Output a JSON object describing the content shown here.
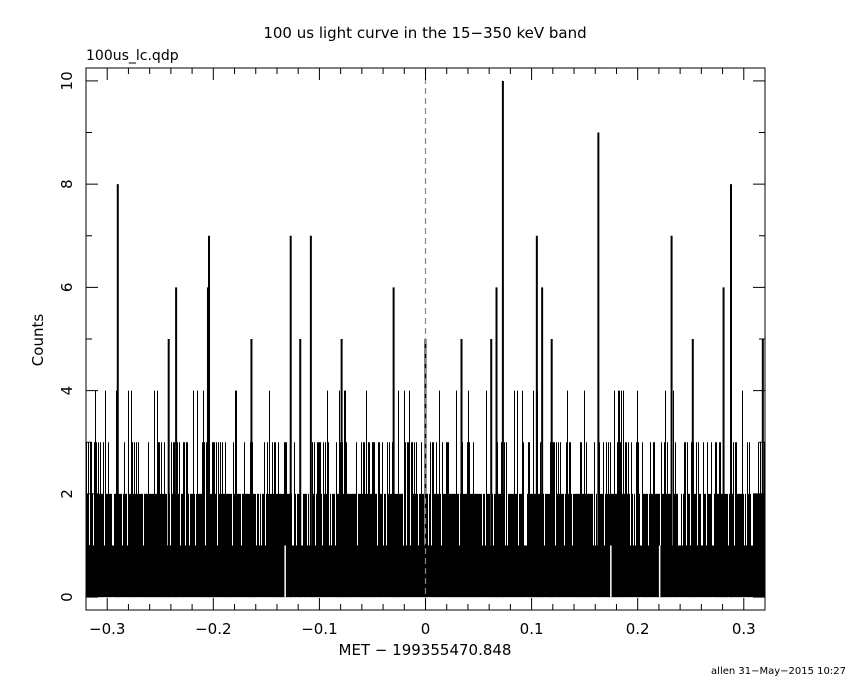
{
  "chart_data": {
    "type": "bar",
    "title": "100 us light curve in the 15−350 keV band",
    "subtitle": "100us_lc.qdp",
    "xlabel": "MET − 199355470.848",
    "ylabel": "Counts",
    "footer": "allen 31−May−2015 10:27",
    "xlim": [
      -0.32,
      0.32
    ],
    "ylim": [
      -0.25,
      10.25
    ],
    "bin_width": 0.0001,
    "x_ticks": [
      -0.3,
      -0.2,
      -0.1,
      0,
      0.1,
      0.2,
      0.3
    ],
    "x_tick_labels": [
      "−0.3",
      "−0.2",
      "−0.1",
      "0",
      "0.1",
      "0.2",
      "0.3"
    ],
    "y_ticks": [
      0,
      2,
      4,
      6,
      8,
      10
    ],
    "y_tick_labels": [
      "0",
      "2",
      "4",
      "6",
      "8",
      "10"
    ],
    "trigger_line_x": 0,
    "trigger_line_color": "#3a9bd8",
    "bar_color": "#000000",
    "background_level_counts": 1,
    "peak_bins": [
      {
        "x": -0.291,
        "count": 8
      },
      {
        "x": -0.243,
        "count": 5
      },
      {
        "x": -0.236,
        "count": 6
      },
      {
        "x": -0.205,
        "count": 7
      },
      {
        "x": -0.206,
        "count": 6
      },
      {
        "x": -0.165,
        "count": 5
      },
      {
        "x": -0.128,
        "count": 7
      },
      {
        "x": -0.119,
        "count": 5
      },
      {
        "x": -0.109,
        "count": 7
      },
      {
        "x": -0.08,
        "count": 5
      },
      {
        "x": -0.031,
        "count": 6
      },
      {
        "x": -0.001,
        "count": 5
      },
      {
        "x": 0.033,
        "count": 5
      },
      {
        "x": 0.061,
        "count": 5
      },
      {
        "x": 0.066,
        "count": 6
      },
      {
        "x": 0.072,
        "count": 10
      },
      {
        "x": 0.104,
        "count": 7
      },
      {
        "x": 0.109,
        "count": 6
      },
      {
        "x": 0.118,
        "count": 5
      },
      {
        "x": 0.162,
        "count": 9
      },
      {
        "x": 0.231,
        "count": 7
      },
      {
        "x": 0.251,
        "count": 5
      },
      {
        "x": 0.28,
        "count": 6
      },
      {
        "x": 0.287,
        "count": 8
      },
      {
        "x": 0.317,
        "count": 5
      }
    ]
  }
}
